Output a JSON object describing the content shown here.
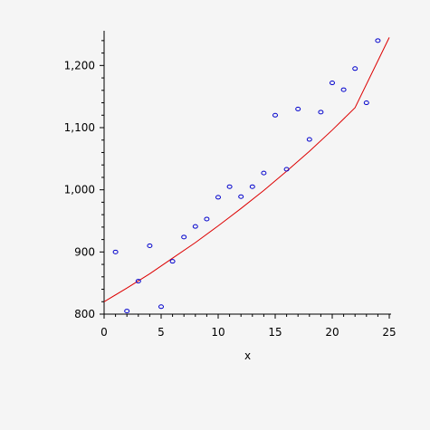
{
  "chart_data": {
    "type": "scatter",
    "title": "",
    "xlabel": "x",
    "ylabel": "",
    "xlim": [
      0,
      25
    ],
    "ylim": [
      800,
      1250
    ],
    "x_ticks": [
      0,
      5,
      10,
      15,
      20,
      25
    ],
    "x_tick_labels": [
      "0",
      "5",
      "10",
      "15",
      "20",
      "25"
    ],
    "y_ticks": [
      800,
      900,
      1000,
      1100,
      1200
    ],
    "y_tick_labels": [
      "800",
      "900",
      "1,000",
      "1,100",
      "1,200"
    ],
    "grid": false,
    "series": [
      {
        "kind": "points",
        "color": "#0000cc",
        "x": [
          1,
          2,
          3,
          4,
          5,
          6,
          7,
          8,
          9,
          10,
          11,
          12,
          13,
          14,
          15,
          16,
          17,
          18,
          19,
          20,
          21,
          22,
          23,
          24
        ],
        "y": [
          900,
          805,
          853,
          910,
          812,
          885,
          924,
          941,
          953,
          988,
          1005,
          989,
          1005,
          1027,
          1120,
          1033,
          1130,
          1081,
          1125,
          1172,
          1161,
          1195,
          1140,
          1240
        ]
      },
      {
        "kind": "fitted-curve",
        "color": "#dd0000",
        "x": [
          0,
          2,
          4,
          6,
          8,
          10,
          12,
          14,
          16,
          18,
          20,
          22,
          25
        ],
        "y": [
          820,
          842,
          865,
          890,
          915,
          942,
          970,
          999,
          1030,
          1062,
          1096,
          1132,
          1245
        ]
      }
    ]
  }
}
